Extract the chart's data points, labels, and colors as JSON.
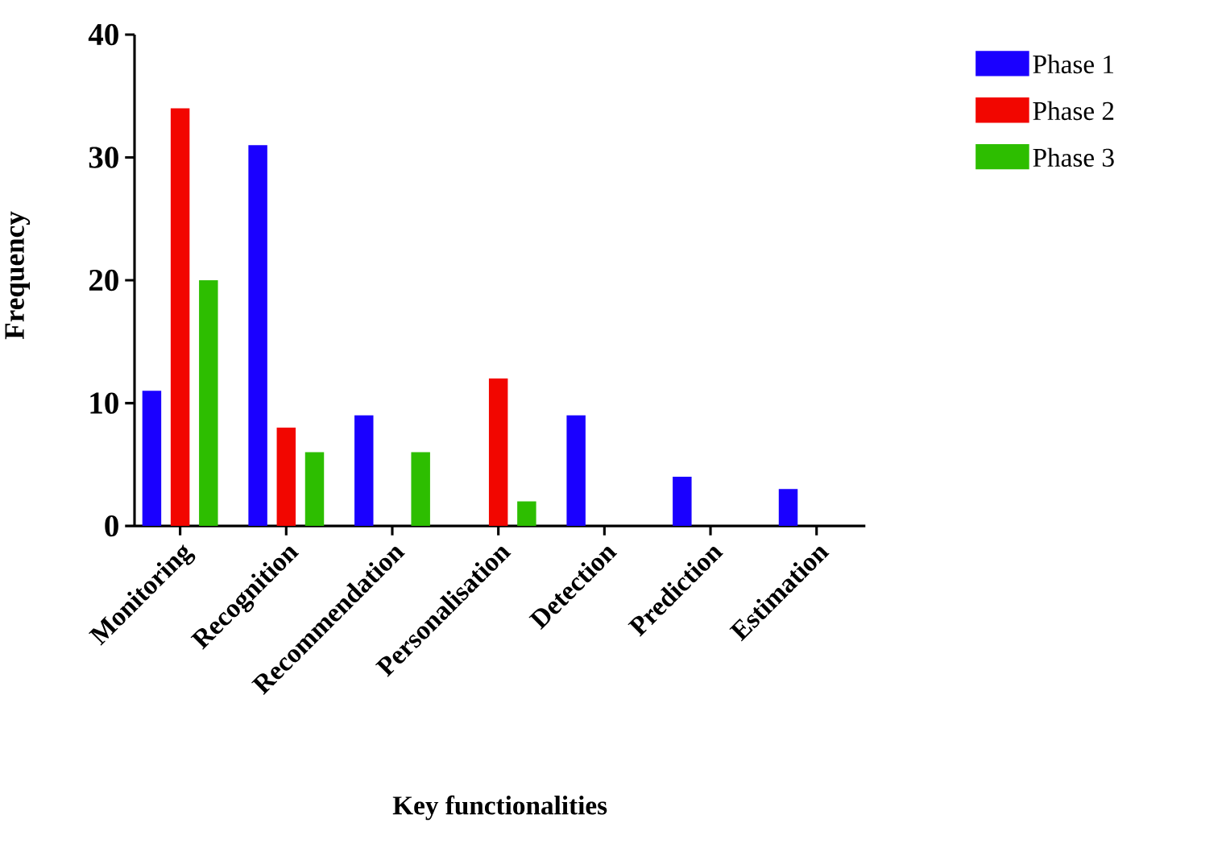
{
  "chart_data": {
    "type": "bar",
    "xlabel": "Key functionalities",
    "ylabel": "Frequency",
    "categories": [
      "Monitoring",
      "Recognition",
      "Recommendation",
      "Personalisation",
      "Detection",
      "Prediction",
      "Estimation"
    ],
    "series": [
      {
        "name": "Phase 1",
        "color": "#1a00ff",
        "values": [
          11,
          31,
          9,
          0,
          9,
          4,
          3
        ]
      },
      {
        "name": "Phase 2",
        "color": "#f20600",
        "values": [
          34,
          8,
          0,
          12,
          0,
          0,
          0
        ]
      },
      {
        "name": "Phase 3",
        "color": "#2dbe00",
        "values": [
          20,
          6,
          6,
          2,
          0,
          0,
          0
        ]
      }
    ],
    "ylim": [
      0,
      40
    ],
    "yticks": [
      0,
      10,
      20,
      30,
      40
    ],
    "grid": false,
    "legend": "top right"
  }
}
